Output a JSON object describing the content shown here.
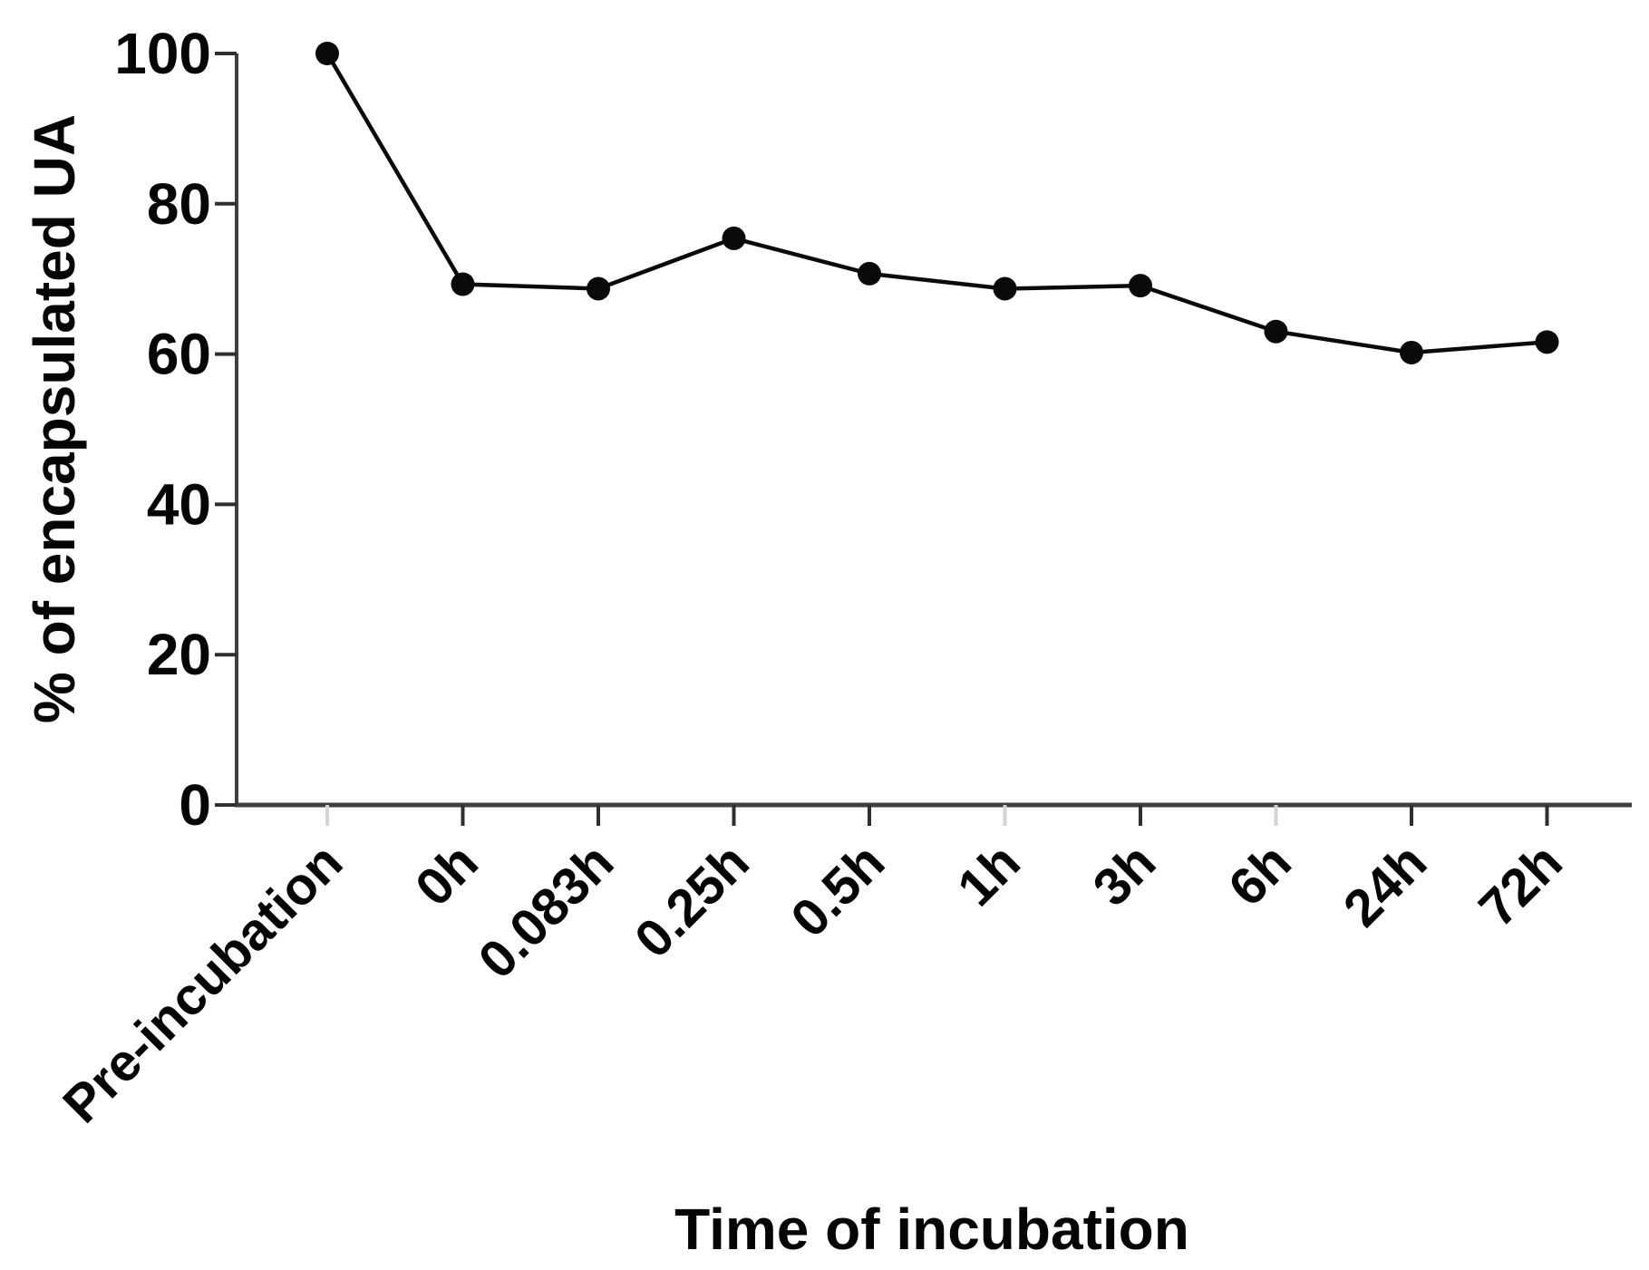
{
  "figure": {
    "background": "#ffffff"
  },
  "chart_data": {
    "type": "line",
    "title": "",
    "xlabel": "Time of incubation",
    "ylabel": "% of encapsulated UA",
    "categories": [
      "Pre-incubation",
      "0h",
      "0.083h",
      "0.25h",
      "0.5h",
      "1h",
      "3h",
      "6h",
      "24h",
      "72h"
    ],
    "values": [
      100,
      69.3,
      68.7,
      75.4,
      70.7,
      68.7,
      69.1,
      63.0,
      60.2,
      61.6
    ],
    "y_ticks": [
      0,
      20,
      40,
      60,
      80,
      100
    ],
    "ylim": [
      0,
      100
    ],
    "grid": false,
    "legend": false,
    "marker": "filled-circle",
    "line_color": "#0a0a0a",
    "marker_color": "#0a0a0a",
    "axis_color": "#3f3f3f",
    "tick_color": "#2f2f2f",
    "faint_tick_color": "#d5d5d5",
    "faint_tick_indices": [
      0,
      5,
      7
    ],
    "text_color": "#050505"
  }
}
